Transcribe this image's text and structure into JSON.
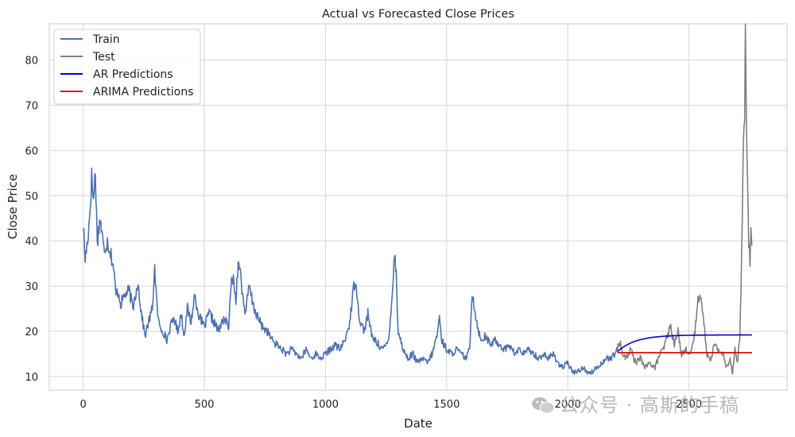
{
  "chart_data": {
    "type": "line",
    "title": "Actual vs Forecasted Close Prices",
    "xlabel": "Date",
    "ylabel": "Close Price",
    "xlim": [
      -140,
      2905
    ],
    "ylim": [
      7,
      88
    ],
    "x_ticks": [
      0,
      500,
      1000,
      1500,
      2000,
      2500
    ],
    "y_ticks": [
      10,
      20,
      30,
      40,
      50,
      60,
      70,
      80
    ],
    "grid": true,
    "legend_position": "top-left",
    "series": [
      {
        "name": "Train",
        "color": "#4c72b0",
        "x_range": [
          0,
          2205
        ],
        "anchors": [
          [
            0,
            44
          ],
          [
            8,
            36
          ],
          [
            16,
            39
          ],
          [
            26,
            45
          ],
          [
            35,
            54
          ],
          [
            43,
            49
          ],
          [
            50,
            56
          ],
          [
            58,
            40
          ],
          [
            70,
            45
          ],
          [
            85,
            38
          ],
          [
            100,
            40
          ],
          [
            115,
            37
          ],
          [
            125,
            34
          ],
          [
            135,
            28
          ],
          [
            145,
            29
          ],
          [
            155,
            26
          ],
          [
            170,
            28
          ],
          [
            190,
            29
          ],
          [
            205,
            25
          ],
          [
            225,
            31
          ],
          [
            240,
            24
          ],
          [
            255,
            19
          ],
          [
            270,
            22
          ],
          [
            285,
            25
          ],
          [
            295,
            34
          ],
          [
            305,
            25
          ],
          [
            315,
            21
          ],
          [
            330,
            20
          ],
          [
            345,
            18
          ],
          [
            360,
            21
          ],
          [
            375,
            23
          ],
          [
            390,
            20
          ],
          [
            405,
            24
          ],
          [
            415,
            19
          ],
          [
            430,
            25
          ],
          [
            445,
            22
          ],
          [
            460,
            28
          ],
          [
            480,
            23
          ],
          [
            500,
            21
          ],
          [
            520,
            24
          ],
          [
            540,
            22
          ],
          [
            560,
            20
          ],
          [
            580,
            23
          ],
          [
            600,
            21
          ],
          [
            615,
            33
          ],
          [
            630,
            27
          ],
          [
            642,
            37
          ],
          [
            655,
            29
          ],
          [
            670,
            24
          ],
          [
            685,
            30
          ],
          [
            700,
            26
          ],
          [
            720,
            23
          ],
          [
            740,
            21
          ],
          [
            760,
            20
          ],
          [
            780,
            18
          ],
          [
            800,
            17
          ],
          [
            820,
            16
          ],
          [
            840,
            15
          ],
          [
            860,
            16
          ],
          [
            880,
            15
          ],
          [
            900,
            14
          ],
          [
            920,
            16
          ],
          [
            940,
            14
          ],
          [
            960,
            15
          ],
          [
            980,
            14
          ],
          [
            1000,
            15
          ],
          [
            1020,
            16
          ],
          [
            1040,
            17
          ],
          [
            1060,
            16
          ],
          [
            1080,
            18
          ],
          [
            1100,
            22
          ],
          [
            1115,
            29
          ],
          [
            1125,
            32
          ],
          [
            1135,
            25
          ],
          [
            1145,
            22
          ],
          [
            1160,
            20
          ],
          [
            1175,
            24
          ],
          [
            1190,
            19
          ],
          [
            1205,
            18
          ],
          [
            1220,
            17
          ],
          [
            1240,
            16
          ],
          [
            1260,
            18
          ],
          [
            1275,
            28
          ],
          [
            1285,
            37
          ],
          [
            1292,
            33
          ],
          [
            1300,
            20
          ],
          [
            1320,
            16
          ],
          [
            1340,
            14
          ],
          [
            1360,
            15
          ],
          [
            1380,
            13
          ],
          [
            1400,
            14
          ],
          [
            1420,
            13
          ],
          [
            1440,
            15
          ],
          [
            1460,
            19
          ],
          [
            1470,
            23
          ],
          [
            1480,
            18
          ],
          [
            1500,
            16
          ],
          [
            1520,
            15
          ],
          [
            1540,
            16
          ],
          [
            1560,
            15
          ],
          [
            1580,
            14
          ],
          [
            1595,
            16
          ],
          [
            1605,
            29
          ],
          [
            1615,
            25
          ],
          [
            1625,
            22
          ],
          [
            1640,
            18
          ],
          [
            1660,
            19
          ],
          [
            1680,
            17
          ],
          [
            1700,
            18
          ],
          [
            1720,
            17
          ],
          [
            1740,
            16
          ],
          [
            1760,
            17
          ],
          [
            1780,
            15
          ],
          [
            1800,
            16
          ],
          [
            1820,
            15
          ],
          [
            1840,
            16
          ],
          [
            1860,
            15
          ],
          [
            1880,
            14
          ],
          [
            1900,
            15
          ],
          [
            1920,
            14
          ],
          [
            1940,
            15
          ],
          [
            1960,
            13
          ],
          [
            1980,
            12
          ],
          [
            2000,
            13
          ],
          [
            2020,
            11
          ],
          [
            2040,
            11
          ],
          [
            2060,
            12
          ],
          [
            2080,
            11
          ],
          [
            2100,
            11
          ],
          [
            2120,
            12
          ],
          [
            2140,
            13
          ],
          [
            2160,
            14
          ],
          [
            2180,
            14
          ],
          [
            2205,
            16
          ]
        ]
      },
      {
        "name": "Test",
        "color": "#808080",
        "x_range": [
          2205,
          2760
        ],
        "anchors": [
          [
            2205,
            16
          ],
          [
            2215,
            18
          ],
          [
            2225,
            15
          ],
          [
            2240,
            14
          ],
          [
            2260,
            16
          ],
          [
            2280,
            13
          ],
          [
            2300,
            14
          ],
          [
            2320,
            12
          ],
          [
            2340,
            13
          ],
          [
            2360,
            12
          ],
          [
            2380,
            15
          ],
          [
            2395,
            16
          ],
          [
            2410,
            19
          ],
          [
            2425,
            21
          ],
          [
            2440,
            17
          ],
          [
            2455,
            20
          ],
          [
            2470,
            15
          ],
          [
            2490,
            16
          ],
          [
            2510,
            15
          ],
          [
            2525,
            20
          ],
          [
            2535,
            26
          ],
          [
            2545,
            29
          ],
          [
            2555,
            25
          ],
          [
            2565,
            20
          ],
          [
            2575,
            15
          ],
          [
            2590,
            14
          ],
          [
            2605,
            17
          ],
          [
            2620,
            16
          ],
          [
            2640,
            15
          ],
          [
            2655,
            12
          ],
          [
            2670,
            14
          ],
          [
            2680,
            11
          ],
          [
            2690,
            16
          ],
          [
            2700,
            13
          ],
          [
            2710,
            19
          ],
          [
            2715,
            28
          ],
          [
            2720,
            45
          ],
          [
            2725,
            63
          ],
          [
            2730,
            70
          ],
          [
            2733,
            84
          ],
          [
            2737,
            68
          ],
          [
            2742,
            52
          ],
          [
            2747,
            40
          ],
          [
            2752,
            35
          ],
          [
            2756,
            43
          ],
          [
            2760,
            39
          ]
        ]
      },
      {
        "name": "AR Predictions",
        "color": "#0000e0",
        "x_range": [
          2205,
          2760
        ],
        "start": 15.5,
        "plateau": 19.2
      },
      {
        "name": "ARIMA Predictions",
        "color": "#e00000",
        "x_range": [
          2205,
          2760
        ],
        "value": 15.3
      }
    ]
  },
  "watermark": {
    "icon": "wechat-icon",
    "text": "公众号 · 高斯的手稿"
  }
}
